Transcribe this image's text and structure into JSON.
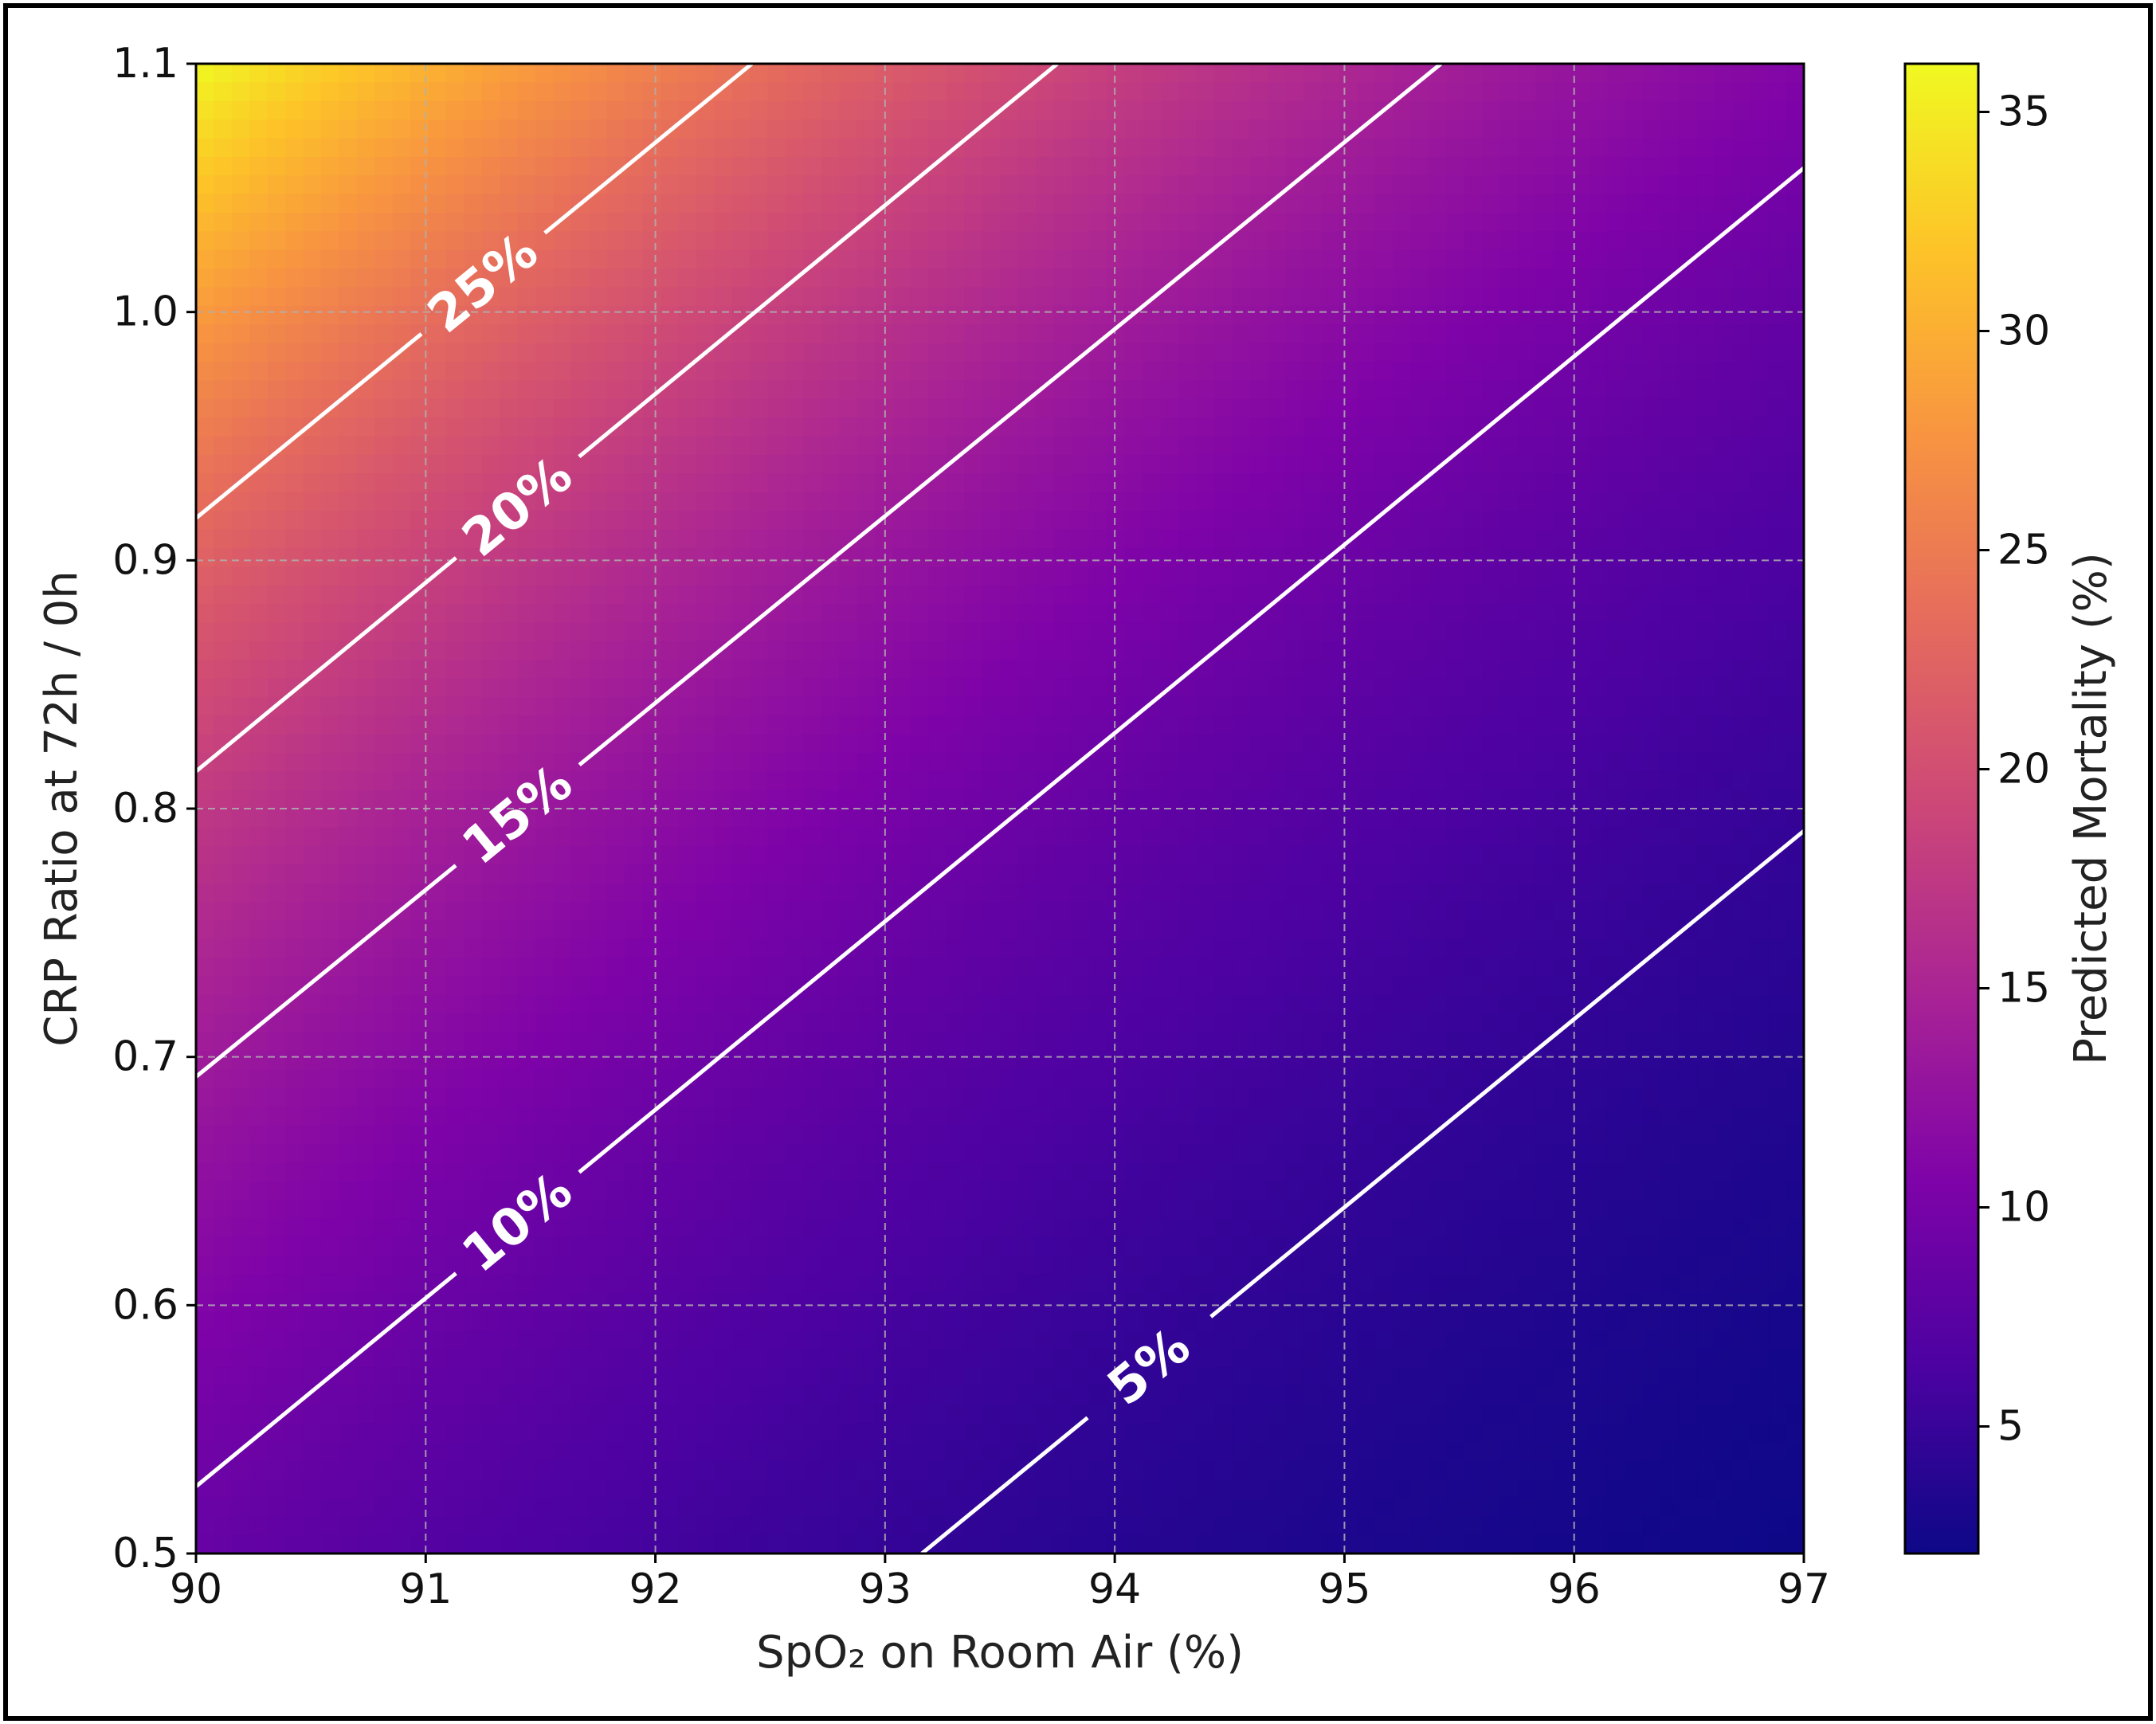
{
  "chart_data": {
    "type": "heatmap",
    "xlabel": "SpO₂ on Room Air (%)",
    "ylabel": "CRP Ratio at 72h / 0h",
    "xlim": [
      90,
      97
    ],
    "ylim": [
      0.5,
      1.1
    ],
    "x_ticks": [
      "90",
      "91",
      "92",
      "93",
      "94",
      "95",
      "96",
      "97"
    ],
    "y_ticks": [
      "0.5",
      "0.6",
      "0.7",
      "0.8",
      "0.9",
      "1.0",
      "1.1"
    ],
    "grid": true,
    "colormap": "plasma",
    "colorbar": {
      "label": "Predicted Mortality (%)",
      "range": [
        2.1,
        36.1
      ],
      "ticks": [
        "5",
        "10",
        "15",
        "20",
        "25",
        "30",
        "35"
      ]
    },
    "corner_values": [
      {
        "x": 90,
        "y": 1.1,
        "value": 36
      },
      {
        "x": 97,
        "y": 1.1,
        "value": 11
      },
      {
        "x": 90,
        "y": 0.5,
        "value": 8.6
      },
      {
        "x": 97,
        "y": 0.5,
        "value": 2.1
      }
    ],
    "contours": [
      {
        "label": "25%",
        "value": 25,
        "points": [
          [
            90,
            0.917
          ],
          [
            92.42,
            1.1
          ]
        ]
      },
      {
        "label": "20%",
        "value": 20,
        "points": [
          [
            90,
            0.815
          ],
          [
            93.75,
            1.1
          ]
        ]
      },
      {
        "label": "15%",
        "value": 15,
        "points": [
          [
            90,
            0.692
          ],
          [
            95.42,
            1.1
          ]
        ]
      },
      {
        "label": "10%",
        "value": 10,
        "points": [
          [
            90,
            0.527
          ],
          [
            97,
            1.058
          ]
        ]
      },
      {
        "label": "5%",
        "value": 5,
        "points": [
          [
            93.16,
            0.5
          ],
          [
            97,
            0.791
          ]
        ]
      }
    ]
  },
  "colors": {
    "contour_line": "#ffffff",
    "grid": "#b0b0b0",
    "frame": "#000000"
  }
}
